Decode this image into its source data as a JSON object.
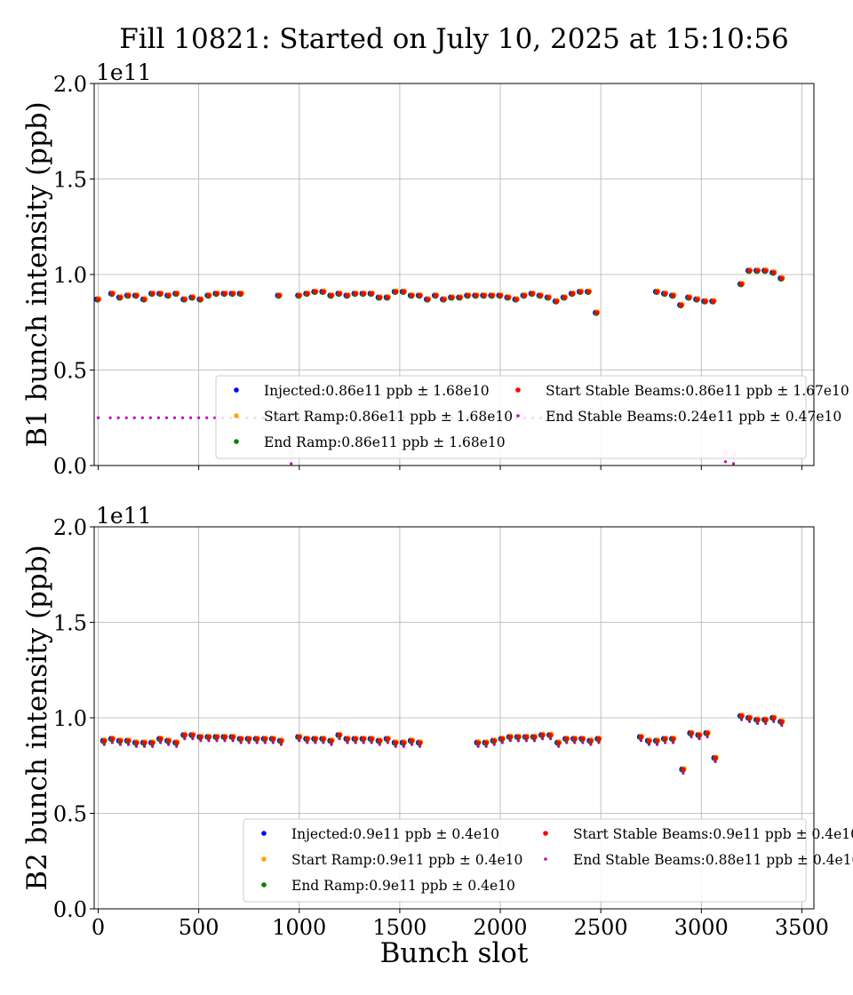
{
  "figure": {
    "title": "Fill 10821: Started on July 10, 2025 at 15:10:56",
    "xlabel": "Bunch slot"
  },
  "colors": {
    "Injected": "#0000ff",
    "Start Ramp": "#ffa500",
    "End Ramp": "#008000",
    "Start Stable Beams": "#ff0000",
    "End Stable Beams": "#c000c0",
    "grid": "#b0b0b0"
  },
  "chart_data": [
    {
      "type": "scatter",
      "ylabel": "B1 bunch intensity (ppb)",
      "offset_label": "1e11",
      "xlim": [
        -20,
        3560
      ],
      "ylim": [
        0,
        2.0
      ],
      "xticks": [
        0,
        500,
        1000,
        1500,
        2000,
        2500,
        3000,
        3500
      ],
      "yticks": [
        "0.0",
        "0.5",
        "1.0",
        "1.5",
        "2.0"
      ],
      "show_xtick_labels": false,
      "grid": true,
      "legend_position": "lower-right",
      "legend": [
        {
          "series": "Injected",
          "label": "Injected:0.86e11 ppb ± 1.68e10"
        },
        {
          "series": "Start Ramp",
          "label": "Start Ramp:0.86e11 ppb ± 1.68e10"
        },
        {
          "series": "End Ramp",
          "label": "End Ramp:0.86e11 ppb ± 1.68e10"
        },
        {
          "series": "Start Stable Beams",
          "label": "Start Stable Beams:0.86e11 ppb ± 1.67e10"
        },
        {
          "series": "End Stable Beams",
          "label": "End Stable Beams:0.24e11 ppb ± 0.47e10"
        }
      ],
      "x": [
        0,
        70,
        110,
        150,
        190,
        230,
        270,
        310,
        350,
        390,
        430,
        470,
        510,
        550,
        590,
        630,
        670,
        710,
        900,
        1000,
        1040,
        1080,
        1120,
        1160,
        1200,
        1240,
        1280,
        1320,
        1360,
        1400,
        1440,
        1480,
        1520,
        1560,
        1600,
        1640,
        1680,
        1720,
        1760,
        1800,
        1840,
        1880,
        1920,
        1960,
        2000,
        2040,
        2080,
        2120,
        2160,
        2200,
        2240,
        2280,
        2320,
        2360,
        2400,
        2440,
        2480,
        2780,
        2820,
        2860,
        2900,
        2940,
        2980,
        3020,
        3060,
        3200,
        3240,
        3280,
        3320,
        3360,
        3400
      ],
      "intensity_values": [
        0.87,
        0.9,
        0.88,
        0.89,
        0.89,
        0.87,
        0.9,
        0.9,
        0.89,
        0.9,
        0.87,
        0.88,
        0.87,
        0.89,
        0.9,
        0.9,
        0.9,
        0.9,
        0.89,
        0.89,
        0.9,
        0.91,
        0.91,
        0.89,
        0.9,
        0.89,
        0.9,
        0.9,
        0.9,
        0.88,
        0.88,
        0.91,
        0.91,
        0.89,
        0.89,
        0.87,
        0.89,
        0.87,
        0.88,
        0.88,
        0.89,
        0.89,
        0.89,
        0.89,
        0.89,
        0.88,
        0.87,
        0.89,
        0.9,
        0.89,
        0.88,
        0.86,
        0.88,
        0.9,
        0.91,
        0.91,
        0.8,
        0.91,
        0.9,
        0.89,
        0.84,
        0.88,
        0.87,
        0.86,
        0.86,
        0.95,
        1.02,
        1.02,
        1.02,
        1.01,
        0.98
      ],
      "end_stable_x": [
        0,
        60,
        100,
        140,
        180,
        220,
        260,
        300,
        340,
        380,
        420,
        460,
        500,
        540,
        580,
        620,
        660,
        700,
        740,
        780,
        820,
        860,
        900,
        960,
        1000,
        1040,
        1080,
        1120,
        1160,
        1200,
        1240,
        1280,
        1320,
        1360,
        1400,
        1440,
        1480,
        1520,
        1560,
        1600,
        1640,
        1680,
        1720,
        1760,
        1800,
        1840,
        1880,
        1920,
        1960,
        2000,
        2040,
        2080,
        2120,
        2160,
        2200,
        2240,
        2280,
        2320,
        2360,
        2400,
        2440,
        2480,
        2520,
        3120,
        3160
      ],
      "end_stable_values": [
        0.25,
        0.25,
        0.25,
        0.25,
        0.25,
        0.25,
        0.25,
        0.25,
        0.25,
        0.25,
        0.25,
        0.25,
        0.25,
        0.25,
        0.25,
        0.25,
        0.25,
        0.25,
        0.25,
        0.25,
        0.25,
        0.25,
        0.25,
        0.01,
        0.25,
        0.25,
        0.25,
        0.25,
        0.25,
        0.25,
        0.25,
        0.25,
        0.25,
        0.25,
        0.25,
        0.25,
        0.25,
        0.25,
        0.25,
        0.25,
        0.25,
        0.25,
        0.25,
        0.25,
        0.25,
        0.25,
        0.25,
        0.25,
        0.25,
        0.25,
        0.25,
        0.25,
        0.25,
        0.25,
        0.25,
        0.25,
        0.25,
        0.25,
        0.25,
        0.25,
        0.25,
        0.25,
        0.25,
        0.02,
        0.01
      ],
      "pale_x": [
        960,
        3120,
        3160
      ],
      "pale_values": [
        0.07,
        0.07,
        0.06
      ]
    },
    {
      "type": "scatter",
      "ylabel": "B2 bunch intensity (ppb)",
      "offset_label": "1e11",
      "xlim": [
        -20,
        3560
      ],
      "ylim": [
        0,
        2.0
      ],
      "xticks": [
        0,
        500,
        1000,
        1500,
        2000,
        2500,
        3000,
        3500
      ],
      "yticks": [
        "0.0",
        "0.5",
        "1.0",
        "1.5",
        "2.0"
      ],
      "show_xtick_labels": true,
      "grid": true,
      "legend_position": "lower-right",
      "legend": [
        {
          "series": "Injected",
          "label": "Injected:0.9e11 ppb ± 0.4e10"
        },
        {
          "series": "Start Ramp",
          "label": "Start Ramp:0.9e11 ppb ± 0.4e10"
        },
        {
          "series": "End Ramp",
          "label": "End Ramp:0.9e11 ppb ± 0.4e10"
        },
        {
          "series": "Start Stable Beams",
          "label": "Start Stable Beams:0.9e11 ppb ± 0.4e10"
        },
        {
          "series": "End Stable Beams",
          "label": "End Stable Beams:0.88e11 ppb ± 0.4e10"
        }
      ],
      "x": [
        30,
        70,
        110,
        150,
        190,
        230,
        270,
        310,
        350,
        390,
        430,
        470,
        510,
        550,
        590,
        630,
        670,
        710,
        750,
        790,
        830,
        870,
        910,
        1000,
        1040,
        1080,
        1120,
        1160,
        1200,
        1240,
        1280,
        1320,
        1360,
        1400,
        1440,
        1480,
        1520,
        1560,
        1600,
        1890,
        1930,
        1970,
        2010,
        2050,
        2090,
        2130,
        2170,
        2210,
        2250,
        2290,
        2330,
        2370,
        2410,
        2450,
        2490,
        2700,
        2740,
        2780,
        2820,
        2860,
        2910,
        2950,
        2990,
        3030,
        3070,
        3200,
        3240,
        3280,
        3320,
        3360,
        3400
      ],
      "intensity_values": [
        0.88,
        0.89,
        0.88,
        0.88,
        0.87,
        0.87,
        0.87,
        0.89,
        0.88,
        0.87,
        0.91,
        0.91,
        0.9,
        0.9,
        0.9,
        0.9,
        0.9,
        0.89,
        0.89,
        0.89,
        0.89,
        0.89,
        0.88,
        0.9,
        0.89,
        0.89,
        0.89,
        0.88,
        0.91,
        0.89,
        0.89,
        0.89,
        0.89,
        0.88,
        0.89,
        0.87,
        0.87,
        0.88,
        0.87,
        0.87,
        0.87,
        0.88,
        0.89,
        0.9,
        0.9,
        0.9,
        0.9,
        0.91,
        0.91,
        0.87,
        0.89,
        0.89,
        0.89,
        0.88,
        0.89,
        0.9,
        0.88,
        0.88,
        0.89,
        0.89,
        0.73,
        0.92,
        0.91,
        0.92,
        0.79,
        1.01,
        1.0,
        0.99,
        0.99,
        1.0,
        0.98
      ],
      "end_stable_offset": -0.02
    }
  ]
}
